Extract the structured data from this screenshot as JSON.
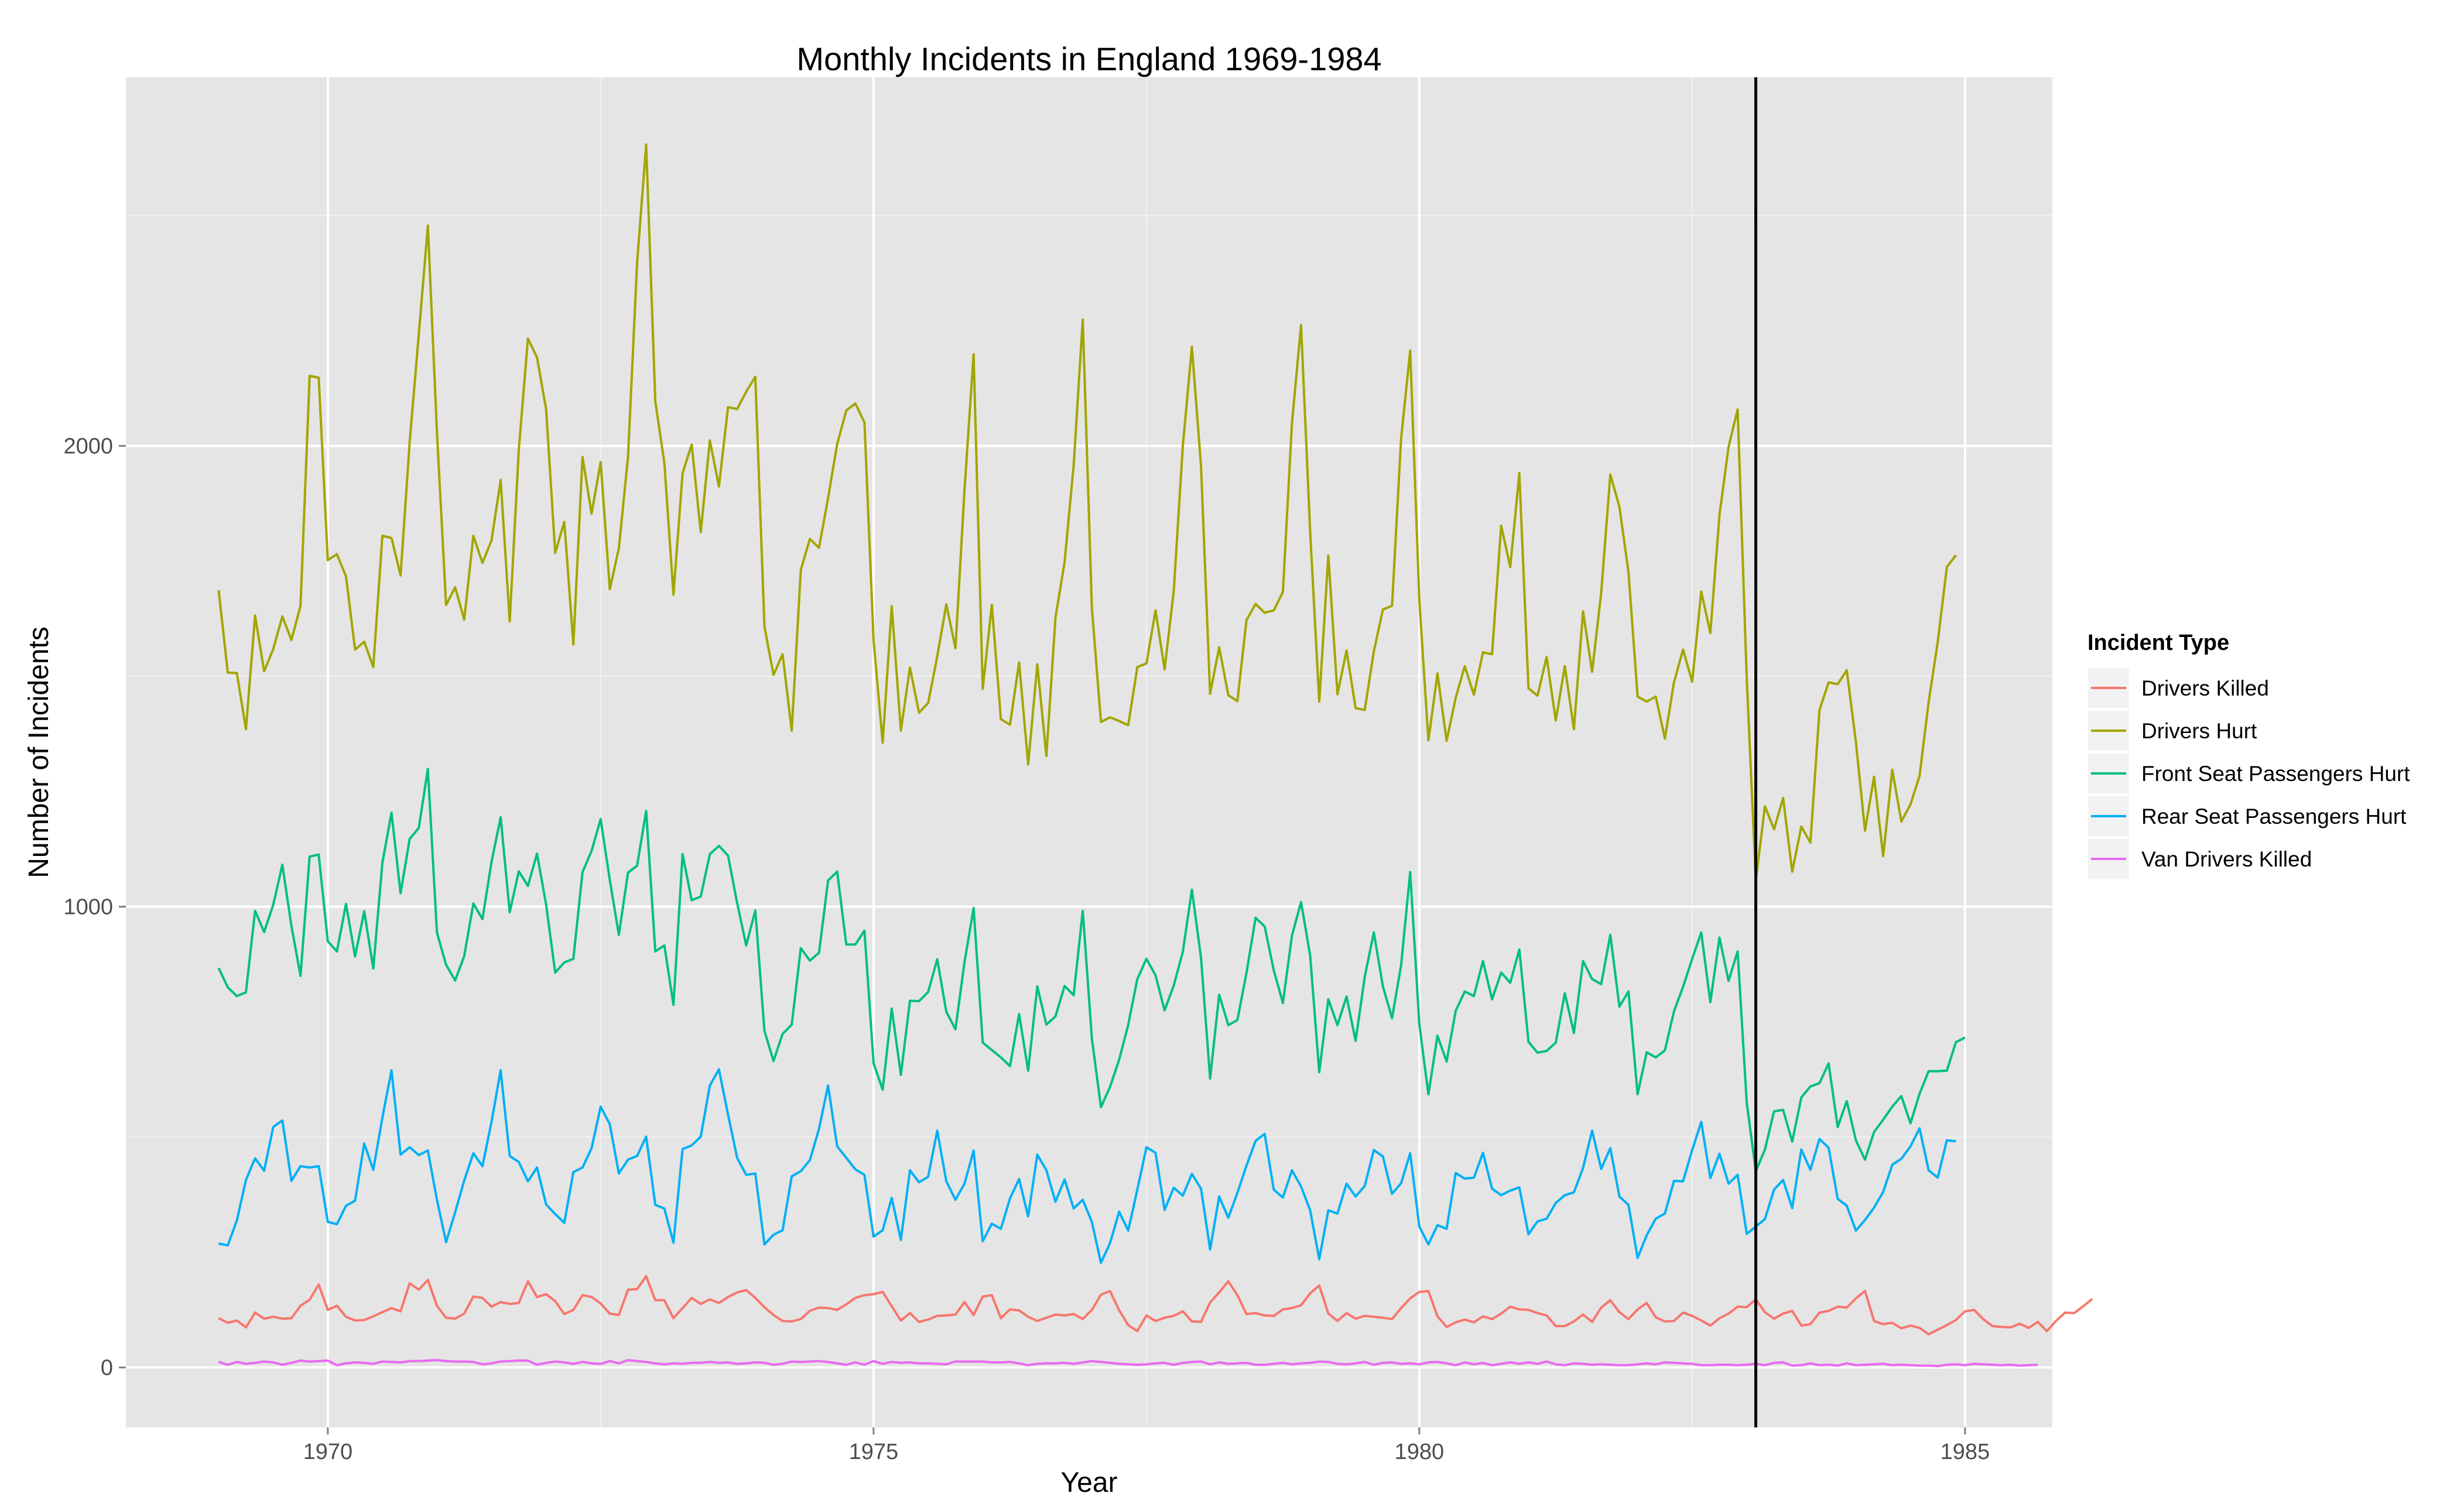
{
  "chart_data": {
    "type": "line",
    "title": "Monthly Incidents in England 1969-1984",
    "xlabel": "Year",
    "ylabel": "Number of Incidents",
    "xlim": [
      1968.15,
      1985.8
    ],
    "ylim": [
      -130,
      2800
    ],
    "x_ticks": [
      1970,
      1975,
      1980,
      1985
    ],
    "x_minor_ticks": [
      1972.5,
      1977.5,
      1982.5
    ],
    "y_ticks": [
      0,
      1000,
      2000
    ],
    "y_minor_ticks": [
      500,
      1500,
      2500
    ],
    "grid": true,
    "legend": {
      "title": "Incident Type",
      "position": "right"
    },
    "vline": {
      "x": 1983.083,
      "label": ""
    },
    "x_start": 1969.0,
    "x_step_months": 1,
    "series": [
      {
        "name": "Drivers Killed",
        "color": "#F8766D",
        "values": [
          107,
          97,
          102,
          87,
          119,
          106,
          110,
          106,
          107,
          134,
          147,
          180,
          125,
          134,
          110,
          102,
          103,
          111,
          120,
          129,
          122,
          183,
          169,
          190,
          134,
          108,
          106,
          117,
          154,
          151,
          132,
          142,
          138,
          140,
          187,
          153,
          159,
          144,
          116,
          125,
          157,
          153,
          139,
          117,
          114,
          169,
          170,
          198,
          146,
          146,
          107,
          129,
          151,
          138,
          148,
          140,
          153,
          163,
          168,
          151,
          131,
          114,
          101,
          100,
          105,
          123,
          130,
          129,
          125,
          137,
          151,
          157,
          159,
          164,
          133,
          102,
          118,
          99,
          104,
          112,
          113,
          115,
          142,
          114,
          154,
          157,
          107,
          126,
          124,
          110,
          101,
          108,
          115,
          113,
          116,
          105,
          125,
          158,
          166,
          124,
          92,
          79,
          113,
          101,
          108,
          112,
          122,
          100,
          99,
          141,
          163,
          187,
          157,
          116,
          118,
          113,
          112,
          126,
          129,
          135,
          161,
          178,
          117,
          101,
          118,
          106,
          112,
          110,
          108,
          105,
          129,
          150,
          164,
          166,
          111,
          88,
          98,
          104,
          98,
          111,
          105,
          117,
          132,
          126,
          125,
          118,
          113,
          90,
          90,
          100,
          115,
          99,
          130,
          146,
          120,
          105,
          126,
          140,
          109,
          100,
          101,
          119,
          112,
          102,
          91,
          107,
          117,
          132,
          131,
          148,
          120,
          106,
          117,
          123,
          91,
          94,
          119,
          123,
          132,
          130,
          150,
          166,
          101,
          94,
          97,
          85,
          91,
          86,
          72,
          82,
          92,
          103,
          122,
          125,
          105,
          90,
          88,
          87,
          95,
          86,
          99,
          79,
          101,
          119,
          118,
          133,
          149
        ]
      },
      {
        "name": "Drivers Hurt",
        "color": "#A3A500",
        "values": [
          1687,
          1508,
          1507,
          1385,
          1632,
          1511,
          1559,
          1630,
          1579,
          1653,
          2152,
          2148,
          1752,
          1765,
          1717,
          1558,
          1575,
          1520,
          1805,
          1800,
          1719,
          2008,
          2242,
          2478,
          2030,
          1655,
          1693,
          1623,
          1805,
          1746,
          1795,
          1926,
          1619,
          1992,
          2233,
          2192,
          2080,
          1768,
          1835,
          1569,
          1976,
          1853,
          1965,
          1689,
          1778,
          1976,
          2397,
          2654,
          2097,
          1963,
          1677,
          1941,
          2003,
          1813,
          2012,
          1912,
          2084,
          2080,
          2118,
          2150,
          1608,
          1503,
          1548,
          1382,
          1731,
          1798,
          1779,
          1887,
          2004,
          2077,
          2092,
          2051,
          1577,
          1356,
          1652,
          1382,
          1519,
          1421,
          1442,
          1543,
          1656,
          1561,
          1905,
          2199,
          1473,
          1655,
          1407,
          1395,
          1530,
          1309,
          1526,
          1327,
          1627,
          1748,
          1958,
          2274,
          1648,
          1401,
          1411,
          1403,
          1394,
          1520,
          1528,
          1643,
          1515,
          1685,
          2000,
          2215,
          1956,
          1462,
          1563,
          1459,
          1446,
          1622,
          1657,
          1638,
          1643,
          1683,
          2050,
          2262,
          1813,
          1445,
          1762,
          1461,
          1556,
          1431,
          1427,
          1554,
          1645,
          1653,
          2016,
          2207,
          1665,
          1361,
          1506,
          1360,
          1453,
          1522,
          1460,
          1552,
          1548,
          1827,
          1737,
          1941,
          1474,
          1458,
          1542,
          1404,
          1522,
          1385,
          1641,
          1510,
          1681,
          1938,
          1868,
          1726,
          1456,
          1445,
          1456,
          1365,
          1487,
          1558,
          1488,
          1684,
          1594,
          1850,
          1998,
          2079,
          1494,
          1057,
          1218,
          1168,
          1236,
          1076,
          1174,
          1139,
          1427,
          1487,
          1483,
          1513,
          1357,
          1165,
          1282,
          1110,
          1297,
          1185,
          1222,
          1284,
          1444,
          1575,
          1737,
          1763
        ]
      },
      {
        "name": "Front Seat Passengers Hurt",
        "color": "#00BF7D",
        "values": [
          867,
          825,
          806,
          814,
          991,
          945,
          1004,
          1091,
          958,
          850,
          1109,
          1113,
          925,
          903,
          1006,
          892,
          990,
          866,
          1095,
          1204,
          1029,
          1147,
          1171,
          1299,
          944,
          874,
          840,
          893,
          1007,
          973,
          1097,
          1194,
          988,
          1077,
          1045,
          1115,
          1005,
          857,
          879,
          887,
          1075,
          1121,
          1190,
          1058,
          939,
          1074,
          1089,
          1208,
          903,
          916,
          787,
          1114,
          1014,
          1022,
          1114,
          1132,
          1111,
          1008,
          916,
          992,
          731,
          665,
          724,
          744,
          910,
          883,
          900,
          1057,
          1076,
          918,
          918,
          948,
          660,
          603,
          779,
          635,
          796,
          795,
          815,
          886,
          772,
          734,
          880,
          997,
          705,
          689,
          673,
          654,
          767,
          644,
          827,
          744,
          762,
          828,
          808,
          991,
          714,
          565,
          609,
          668,
          744,
          843,
          887,
          851,
          775,
          829,
          902,
          1037,
          889,
          627,
          809,
          743,
          754,
          856,
          976,
          957,
          862,
          791,
          937,
          1010,
          894,
          641,
          799,
          743,
          805,
          709,
          848,
          944,
          827,
          758,
          873,
          1075,
          745,
          593,
          720,
          664,
          774,
          816,
          806,
          882,
          799,
          857,
          835,
          907,
          707,
          683,
          687,
          705,
          812,
          726,
          882,
          843,
          832,
          939,
          783,
          816,
          593,
          684,
          673,
          688,
          773,
          826,
          887,
          944,
          793,
          933,
          839,
          903,
          574,
          426,
          473,
          556,
          559,
          490,
          586,
          610,
          617,
          660,
          522,
          578,
          493,
          451,
          511,
          538,
          566,
          589,
          530,
          594,
          643,
          643,
          644,
          706,
          716
        ]
      },
      {
        "name": "Rear Seat Passengers Hurt",
        "color": "#00B0F6",
        "values": [
          269,
          265,
          319,
          407,
          454,
          427,
          522,
          536,
          405,
          437,
          434,
          437,
          316,
          311,
          351,
          362,
          486,
          429,
          542,
          645,
          462,
          478,
          461,
          471,
          364,
          272,
          337,
          406,
          465,
          437,
          533,
          645,
          459,
          446,
          404,
          434,
          354,
          333,
          314,
          424,
          434,
          476,
          566,
          528,
          421,
          451,
          459,
          501,
          353,
          345,
          271,
          474,
          482,
          501,
          612,
          647,
          549,
          455,
          418,
          421,
          267,
          288,
          298,
          415,
          426,
          450,
          518,
          612,
          480,
          455,
          430,
          418,
          284,
          298,
          368,
          277,
          428,
          402,
          414,
          514,
          404,
          364,
          399,
          471,
          274,
          312,
          301,
          367,
          409,
          328,
          462,
          428,
          360,
          408,
          345,
          364,
          316,
          227,
          270,
          338,
          297,
          386,
          478,
          466,
          342,
          390,
          373,
          420,
          388,
          256,
          371,
          325,
          379,
          438,
          492,
          507,
          386,
          369,
          428,
          393,
          341,
          235,
          341,
          334,
          399,
          371,
          394,
          472,
          458,
          377,
          400,
          465,
          306,
          267,
          309,
          301,
          422,
          410,
          412,
          466,
          388,
          374,
          384,
          391,
          289,
          317,
          323,
          357,
          374,
          380,
          433,
          514,
          431,
          476,
          371,
          353,
          238,
          287,
          323,
          334,
          405,
          404,
          472,
          533,
          411,
          464,
          399,
          418,
          290,
          306,
          322,
          386,
          407,
          346,
          473,
          429,
          496,
          477,
          366,
          351,
          297,
          320,
          347,
          381,
          440,
          453,
          480,
          519,
          428,
          412,
          493,
          491
        ]
      },
      {
        "name": "Van Drivers Killed",
        "color": "#E76BF3",
        "values": [
          12,
          6,
          12,
          8,
          10,
          13,
          11,
          6,
          10,
          15,
          13,
          14,
          15,
          5,
          9,
          11,
          10,
          8,
          13,
          12,
          11,
          14,
          14,
          15,
          16,
          14,
          13,
          13,
          12,
          7,
          9,
          13,
          14,
          15,
          15,
          6,
          10,
          13,
          11,
          8,
          12,
          9,
          8,
          14,
          9,
          16,
          14,
          12,
          9,
          7,
          9,
          8,
          10,
          10,
          12,
          10,
          11,
          8,
          9,
          11,
          10,
          6,
          8,
          13,
          12,
          13,
          14,
          12,
          9,
          6,
          11,
          6,
          14,
          8,
          12,
          10,
          11,
          9,
          9,
          8,
          7,
          13,
          13,
          13,
          13,
          11,
          11,
          12,
          9,
          5,
          8,
          9,
          9,
          10,
          8,
          11,
          14,
          12,
          10,
          8,
          7,
          6,
          7,
          9,
          10,
          6,
          10,
          12,
          13,
          7,
          11,
          8,
          9,
          10,
          6,
          6,
          8,
          10,
          7,
          9,
          10,
          13,
          12,
          8,
          7,
          9,
          12,
          6,
          10,
          11,
          8,
          9,
          7,
          11,
          12,
          9,
          5,
          11,
          7,
          10,
          5,
          8,
          11,
          8,
          11,
          8,
          13,
          7,
          5,
          9,
          8,
          6,
          7,
          6,
          5,
          5,
          7,
          9,
          7,
          11,
          10,
          9,
          8,
          5,
          5,
          6,
          6,
          5,
          6,
          8,
          5,
          10,
          11,
          4,
          5,
          9,
          5,
          6,
          4,
          9,
          5,
          6,
          7,
          8,
          5,
          6,
          5,
          4,
          4,
          3,
          6,
          7,
          5,
          8,
          7,
          6,
          5,
          6,
          4,
          5,
          6
        ]
      }
    ]
  }
}
